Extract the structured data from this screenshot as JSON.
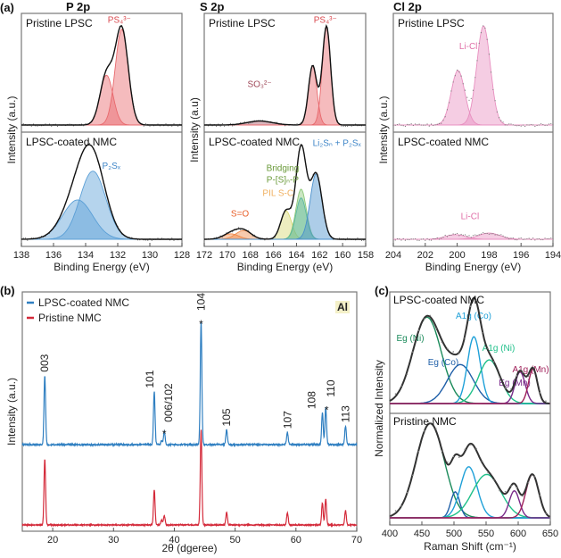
{
  "panel_labels": {
    "a": "(a)",
    "b": "(b)",
    "c": "(c)"
  },
  "chart_data": [
    {
      "type": "area",
      "title": "P 2p",
      "xlabel": "Binding Energy (eV)",
      "ylabel": "Intensity (a.u.)",
      "xlim": [
        138,
        128
      ],
      "xticks": [
        138,
        136,
        134,
        132,
        130,
        128
      ],
      "panels": [
        {
          "label": "Pristine LPSC",
          "components": [
            {
              "center": 132.7,
              "height": 0.52,
              "fwhm": 0.95,
              "color": "#e8696d"
            },
            {
              "center": 131.75,
              "height": 1.0,
              "fwhm": 0.95,
              "color": "#e8696d"
            }
          ],
          "annotations": [
            {
              "text": "PS₄³⁻",
              "color": "#d9484e"
            }
          ]
        },
        {
          "label": "LPSC-coated NMC",
          "components": [
            {
              "center": 134.5,
              "height": 0.45,
              "fwhm": 2.2,
              "color": "#5b9fd6"
            },
            {
              "center": 133.55,
              "height": 0.78,
              "fwhm": 1.9,
              "color": "#5b9fd6"
            }
          ],
          "annotations": [
            {
              "text": "P₂Sₓ",
              "color": "#3f86c8"
            }
          ]
        }
      ]
    },
    {
      "type": "area",
      "title": "S 2p",
      "xlabel": "Binding Energy (eV)",
      "ylabel": "Intensity (a.u)",
      "xlim": [
        172,
        158
      ],
      "xticks": [
        172,
        170,
        168,
        166,
        164,
        162,
        160,
        158
      ],
      "panels": [
        {
          "label": "Pristine LPSC",
          "components": [
            {
              "center": 167.2,
              "height": 0.04,
              "fwhm": 2.6,
              "color": "#b05a6a"
            },
            {
              "center": 162.6,
              "height": 0.6,
              "fwhm": 0.85,
              "color": "#e8696d"
            },
            {
              "center": 161.4,
              "height": 1.0,
              "fwhm": 0.85,
              "color": "#e8696d"
            }
          ],
          "annotations": [
            {
              "text": "PS₄³⁻",
              "color": "#d9484e"
            },
            {
              "text": "SO₃²⁻",
              "color": "#a04a5a"
            }
          ]
        },
        {
          "label": "LPSC-coated NMC",
          "components": [
            {
              "center": 169.7,
              "height": 0.05,
              "fwhm": 1.6,
              "color": "#f08a4a"
            },
            {
              "center": 168.6,
              "height": 0.08,
              "fwhm": 1.6,
              "color": "#f08a4a"
            },
            {
              "center": 164.9,
              "height": 0.26,
              "fwhm": 1.1,
              "color": "#d8d870"
            },
            {
              "center": 163.6,
              "height": 0.46,
              "fwhm": 1.05,
              "color": "#8cc878"
            },
            {
              "center": 163.6,
              "height": 0.38,
              "fwhm": 1.05,
              "color": "#5cb8a0"
            },
            {
              "center": 162.3,
              "height": 0.6,
              "fwhm": 1.2,
              "color": "#4a90cc"
            }
          ],
          "annotations": [
            {
              "text": "Li₂Sₙ + P₂Sₓ",
              "color": "#3f86c8"
            },
            {
              "text": "Bridging",
              "color": "#6a9a3a"
            },
            {
              "text": "P-[S]ₙ-P",
              "color": "#6a9a3a"
            },
            {
              "text": "PIL S-C",
              "color": "#f0b060"
            },
            {
              "text": "S=O",
              "color": "#e8602a"
            }
          ]
        }
      ]
    },
    {
      "type": "area",
      "title": "Cl 2p",
      "xlabel": "Binding Energy (eV)",
      "ylabel": "Intensity (a.u.)",
      "xlim": [
        204,
        194
      ],
      "xticks": [
        204,
        202,
        200,
        198,
        196,
        194
      ],
      "panels": [
        {
          "label": "Pristine LPSC",
          "components": [
            {
              "center": 199.95,
              "height": 0.55,
              "fwhm": 1.0,
              "color": "#e890c0"
            },
            {
              "center": 198.35,
              "height": 1.0,
              "fwhm": 1.0,
              "color": "#e890c0"
            }
          ],
          "annotations": [
            {
              "text": "Li-Cl",
              "color": "#e070a8"
            }
          ]
        },
        {
          "label": "LPSC-coated NMC",
          "components": [
            {
              "center": 200.1,
              "height": 0.06,
              "fwhm": 1.5,
              "color": "#e890c0"
            },
            {
              "center": 198.0,
              "height": 0.08,
              "fwhm": 1.6,
              "color": "#e890c0"
            }
          ],
          "annotations": [
            {
              "text": "Li-Cl",
              "color": "#e070a8"
            }
          ]
        }
      ]
    },
    {
      "type": "line",
      "xlabel": "2θ (dgeree)",
      "ylabel": "Intensity (a.u.)",
      "xlim": [
        15,
        70
      ],
      "xticks": [
        20,
        30,
        40,
        50,
        60,
        70
      ],
      "peak_positions": [
        18.7,
        36.7,
        37.9,
        38.35,
        44.4,
        48.6,
        58.6,
        64.35,
        64.9,
        68.15
      ],
      "series": [
        {
          "name": "LPSC-coated NMC",
          "color": "#2f7fc1",
          "values": [
            0.56,
            0.43,
            0.03,
            0.11,
            1.0,
            0.12,
            0.1,
            0.26,
            0.3,
            0.15
          ]
        },
        {
          "name": "Pristine NMC",
          "color": "#d42a3a",
          "values": [
            0.69,
            0.37,
            0.05,
            0.1,
            1.0,
            0.13,
            0.13,
            0.23,
            0.27,
            0.15
          ]
        }
      ],
      "peak_labels": [
        {
          "text": "003",
          "x": 18.7
        },
        {
          "text": "101",
          "x": 36.7
        },
        {
          "text": "006/102",
          "x": 38.35
        },
        {
          "text": "104",
          "x": 44.4
        },
        {
          "text": "105",
          "x": 48.6
        },
        {
          "text": "107",
          "x": 58.6
        },
        {
          "text": "108",
          "x": 64.35
        },
        {
          "text": "110",
          "x": 64.9
        },
        {
          "text": "113",
          "x": 68.15
        }
      ],
      "al_marker": {
        "text": "Al",
        "symbol": "*",
        "color": "#6a9a3a",
        "positions": [
          38.35,
          44.4,
          64.9
        ]
      },
      "legend": "top-left"
    },
    {
      "type": "line",
      "xlabel": "Raman Shift (cm⁻¹)",
      "ylabel": "Normalized Intensity",
      "xlim": [
        400,
        650
      ],
      "xticks": [
        400,
        450,
        500,
        550,
        600,
        650
      ],
      "panels": [
        {
          "label": "LPSC-coated NMC",
          "components": [
            {
              "name": "Eg (Ni)",
              "center": 458,
              "height": 0.93,
              "sigma": 22,
              "color": "#1a8a5a"
            },
            {
              "name": "Eg (Co)",
              "center": 510,
              "height": 0.42,
              "sigma": 20,
              "color": "#1f5fa8"
            },
            {
              "name": "A1g (Co)",
              "center": 531,
              "height": 0.72,
              "sigma": 10,
              "color": "#1ea0d8"
            },
            {
              "name": "A1g (Ni)",
              "center": 555,
              "height": 0.47,
              "sigma": 17,
              "color": "#20c08a"
            },
            {
              "name": "Eg (Mn)",
              "center": 603,
              "height": 0.34,
              "sigma": 8,
              "color": "#7a2a8a"
            },
            {
              "name": "A1g (Mn)",
              "center": 623,
              "height": 0.37,
              "sigma": 7,
              "color": "#a0205a"
            }
          ]
        },
        {
          "label": "Pristine NMC",
          "components": [
            {
              "center": 463,
              "height": 0.98,
              "sigma": 22,
              "color": "#1a8a5a"
            },
            {
              "center": 502,
              "height": 0.27,
              "sigma": 7,
              "color": "#1f5fa8"
            },
            {
              "center": 523,
              "height": 0.53,
              "sigma": 13,
              "color": "#1ea0d8"
            },
            {
              "center": 551,
              "height": 0.45,
              "sigma": 22,
              "color": "#20c08a"
            },
            {
              "center": 594,
              "height": 0.28,
              "sigma": 8,
              "color": "#7a2a8a"
            },
            {
              "center": 622,
              "height": 0.45,
              "sigma": 10,
              "color": "#a0205a"
            }
          ]
        }
      ]
    }
  ]
}
